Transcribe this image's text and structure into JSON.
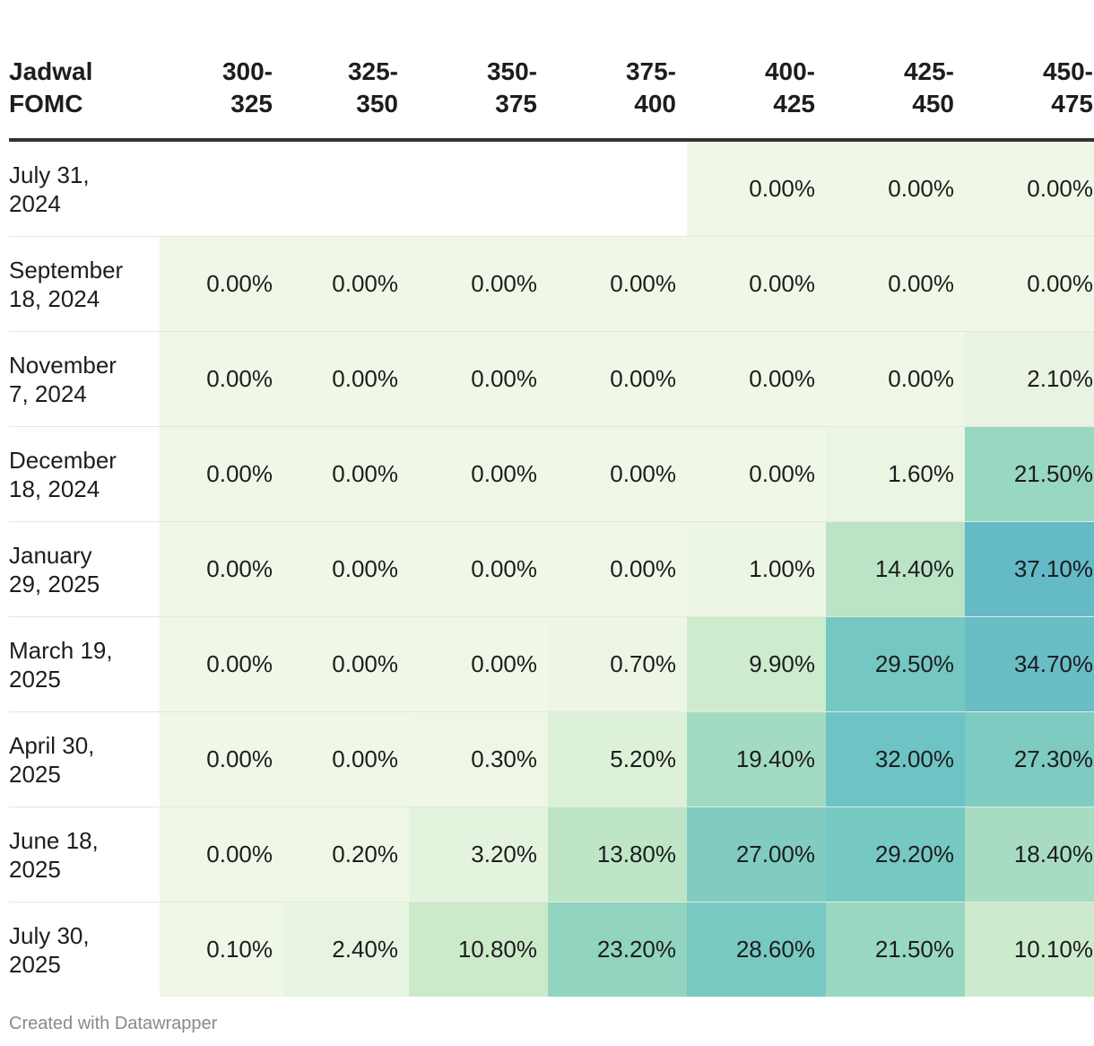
{
  "chart_data": {
    "type": "table",
    "header_label": [
      "Jadwal",
      "FOMC"
    ],
    "columns": [
      [
        "300-",
        "325"
      ],
      [
        "325-",
        "350"
      ],
      [
        "350-",
        "375"
      ],
      [
        "375-",
        "400"
      ],
      [
        "400-",
        "425"
      ],
      [
        "425-",
        "450"
      ],
      [
        "450-",
        "475"
      ]
    ],
    "rows": [
      {
        "label": [
          "July 31,",
          "2024"
        ],
        "values": [
          null,
          null,
          null,
          null,
          0.0,
          0.0,
          0.0
        ]
      },
      {
        "label": [
          "September",
          "18, 2024"
        ],
        "values": [
          0.0,
          0.0,
          0.0,
          0.0,
          0.0,
          0.0,
          0.0
        ]
      },
      {
        "label": [
          "November",
          "7, 2024"
        ],
        "values": [
          0.0,
          0.0,
          0.0,
          0.0,
          0.0,
          0.0,
          2.1
        ]
      },
      {
        "label": [
          "December",
          "18, 2024"
        ],
        "values": [
          0.0,
          0.0,
          0.0,
          0.0,
          0.0,
          1.6,
          21.5
        ]
      },
      {
        "label": [
          "January",
          "29, 2025"
        ],
        "values": [
          0.0,
          0.0,
          0.0,
          0.0,
          1.0,
          14.4,
          37.1
        ]
      },
      {
        "label": [
          "March 19,",
          "2025"
        ],
        "values": [
          0.0,
          0.0,
          0.0,
          0.7,
          9.9,
          29.5,
          34.7
        ]
      },
      {
        "label": [
          "April 30,",
          "2025"
        ],
        "values": [
          0.0,
          0.0,
          0.3,
          5.2,
          19.4,
          32.0,
          27.3
        ]
      },
      {
        "label": [
          "June 18,",
          "2025"
        ],
        "values": [
          0.0,
          0.2,
          3.2,
          13.8,
          27.0,
          29.2,
          18.4
        ]
      },
      {
        "label": [
          "July 30,",
          "2025"
        ],
        "values": [
          0.1,
          2.4,
          10.8,
          23.2,
          28.6,
          21.5,
          10.1
        ]
      }
    ],
    "value_suffix": "%",
    "color_scale": {
      "stops": [
        {
          "value": 0,
          "color": "#eff7e7"
        },
        {
          "value": 12,
          "color": "#c6e8c7"
        },
        {
          "value": 22,
          "color": "#96d6c0"
        },
        {
          "value": 30,
          "color": "#72c6c2"
        },
        {
          "value": 38,
          "color": "#62b9c8"
        }
      ]
    }
  },
  "footer": "Created with Datawrapper"
}
